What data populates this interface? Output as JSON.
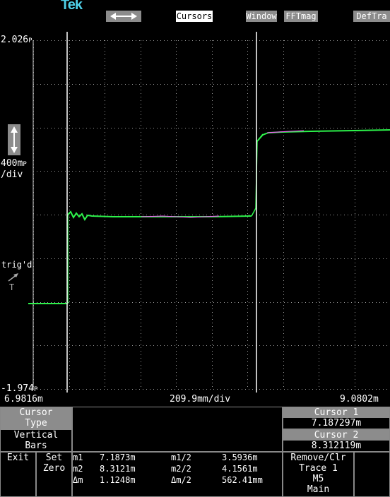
{
  "logo": "Tek",
  "topbar": {
    "arrows_icon": "horizontal-double-arrow-icon",
    "cursors": "Cursors",
    "window": "Window",
    "fftmag": "FFTmag",
    "deftra": "DefTra"
  },
  "scale": {
    "top": "2.026",
    "top_unit": "P",
    "bottom": "-1.974",
    "bottom_unit": "P",
    "vdiv_value": "400m",
    "vdiv_unit": "P",
    "vdiv_suffix": "/div",
    "x_start": "6.9816m",
    "x_div": "209.9mm/div",
    "x_end": "9.0802m"
  },
  "trigger": {
    "label": "trig'd",
    "icon": "trigger-arrow-icon",
    "marker": "T"
  },
  "left_panel": {
    "cursor_type": [
      "Cursor",
      "Type"
    ],
    "vertical_bars": [
      "Vertical",
      "Bars"
    ],
    "exit": "Exit",
    "set_zero": [
      "Set",
      "Zero"
    ]
  },
  "measurements": {
    "m1_label": "m1",
    "m1": "7.1873m",
    "m2_label": "m2",
    "m2": "8.3121m",
    "dm_label": "Δm",
    "dm": "1.1248m",
    "m1h_label": "m1/2",
    "m1h": "3.5936m",
    "m2h_label": "m2/2",
    "m2h": "4.1561m",
    "dmh_label": "Δm/2",
    "dmh": "562.41mm"
  },
  "right_panel": {
    "cursor1_label": "Cursor 1",
    "cursor1_value": "7.187297m",
    "cursor2_label": "Cursor 2",
    "cursor2_value": "8.312119m",
    "remove_clr": "Remove/Clr",
    "trace": "Trace 1",
    "source": "M5",
    "main": "Main"
  },
  "colors": {
    "trace": "#2cf24a",
    "trace_alt": "#ff4dff",
    "grid": "#9a9a9a",
    "cursor": "#ffffff"
  }
}
